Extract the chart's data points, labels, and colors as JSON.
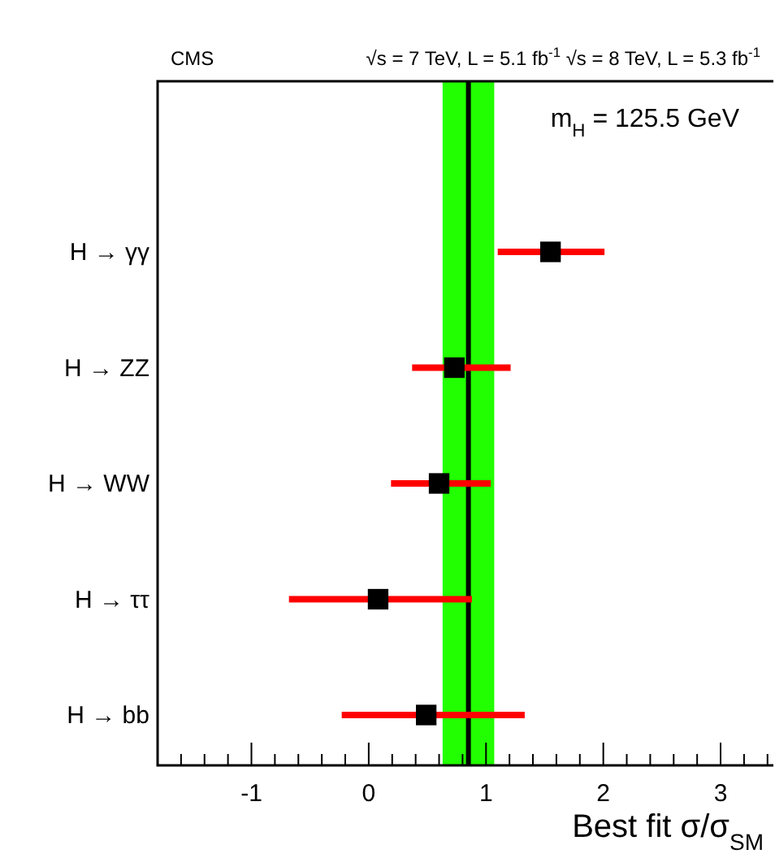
{
  "chart_data": {
    "type": "scatter",
    "orientation": "horizontal",
    "title": "CMS",
    "subtitle": "√s = 7 TeV, L = 5.1 fb$^{-1}$  √s = 8 TeV, L = 5.3 fb$^{-1}$",
    "xlabel": "Best fit σ/σ$_{SM}$",
    "annotations": [
      "m$_{H}$ = 125.5 GeV"
    ],
    "categories": [
      "H → γγ",
      "H → ZZ",
      "H → WW",
      "H → ττ",
      "H → bb"
    ],
    "values": [
      1.55,
      0.73,
      0.6,
      0.08,
      0.49
    ],
    "errors": [
      [
        1.1,
        2.01
      ],
      [
        0.37,
        1.21
      ],
      [
        0.19,
        1.04
      ],
      [
        -0.68,
        0.88
      ],
      [
        -0.23,
        1.33
      ]
    ],
    "color": "#000000",
    "marker": "square",
    "xlim": [
      -1.8,
      3.45
    ],
    "xticks": [
      {
        "value": -1.8,
        "label": null
      },
      {
        "value": -1.6,
        "label": null
      },
      {
        "value": -1.4,
        "label": null
      },
      {
        "value": -1.2,
        "label": null
      },
      -1,
      {
        "value": -0.8,
        "label": null
      },
      {
        "value": -0.6,
        "label": null
      },
      {
        "value": -0.4,
        "label": null
      },
      {
        "value": -0.2,
        "label": null
      },
      0,
      {
        "value": 0.2,
        "label": null
      },
      {
        "value": 0.4,
        "label": null
      },
      {
        "value": 0.6,
        "label": null
      },
      {
        "value": 0.8,
        "label": null
      },
      1,
      {
        "value": 1.2,
        "label": null
      },
      {
        "value": 1.4,
        "label": null
      },
      {
        "value": 1.6,
        "label": null
      },
      {
        "value": 1.8,
        "label": null
      },
      2,
      {
        "value": 2.2,
        "label": null
      },
      {
        "value": 2.4,
        "label": null
      },
      {
        "value": 2.6,
        "label": null
      },
      {
        "value": 2.8,
        "label": null
      },
      3,
      {
        "value": 3.2,
        "label": null
      },
      {
        "value": 3.4,
        "label": null
      }
    ],
    "ref_lines": [
      {
        "axis": "x",
        "value": 0.85,
        "color": "#000000"
      }
    ],
    "bands": [
      {
        "axis": "x",
        "from": 0.63,
        "to": 1.07,
        "color": "#22ff00"
      }
    ]
  }
}
